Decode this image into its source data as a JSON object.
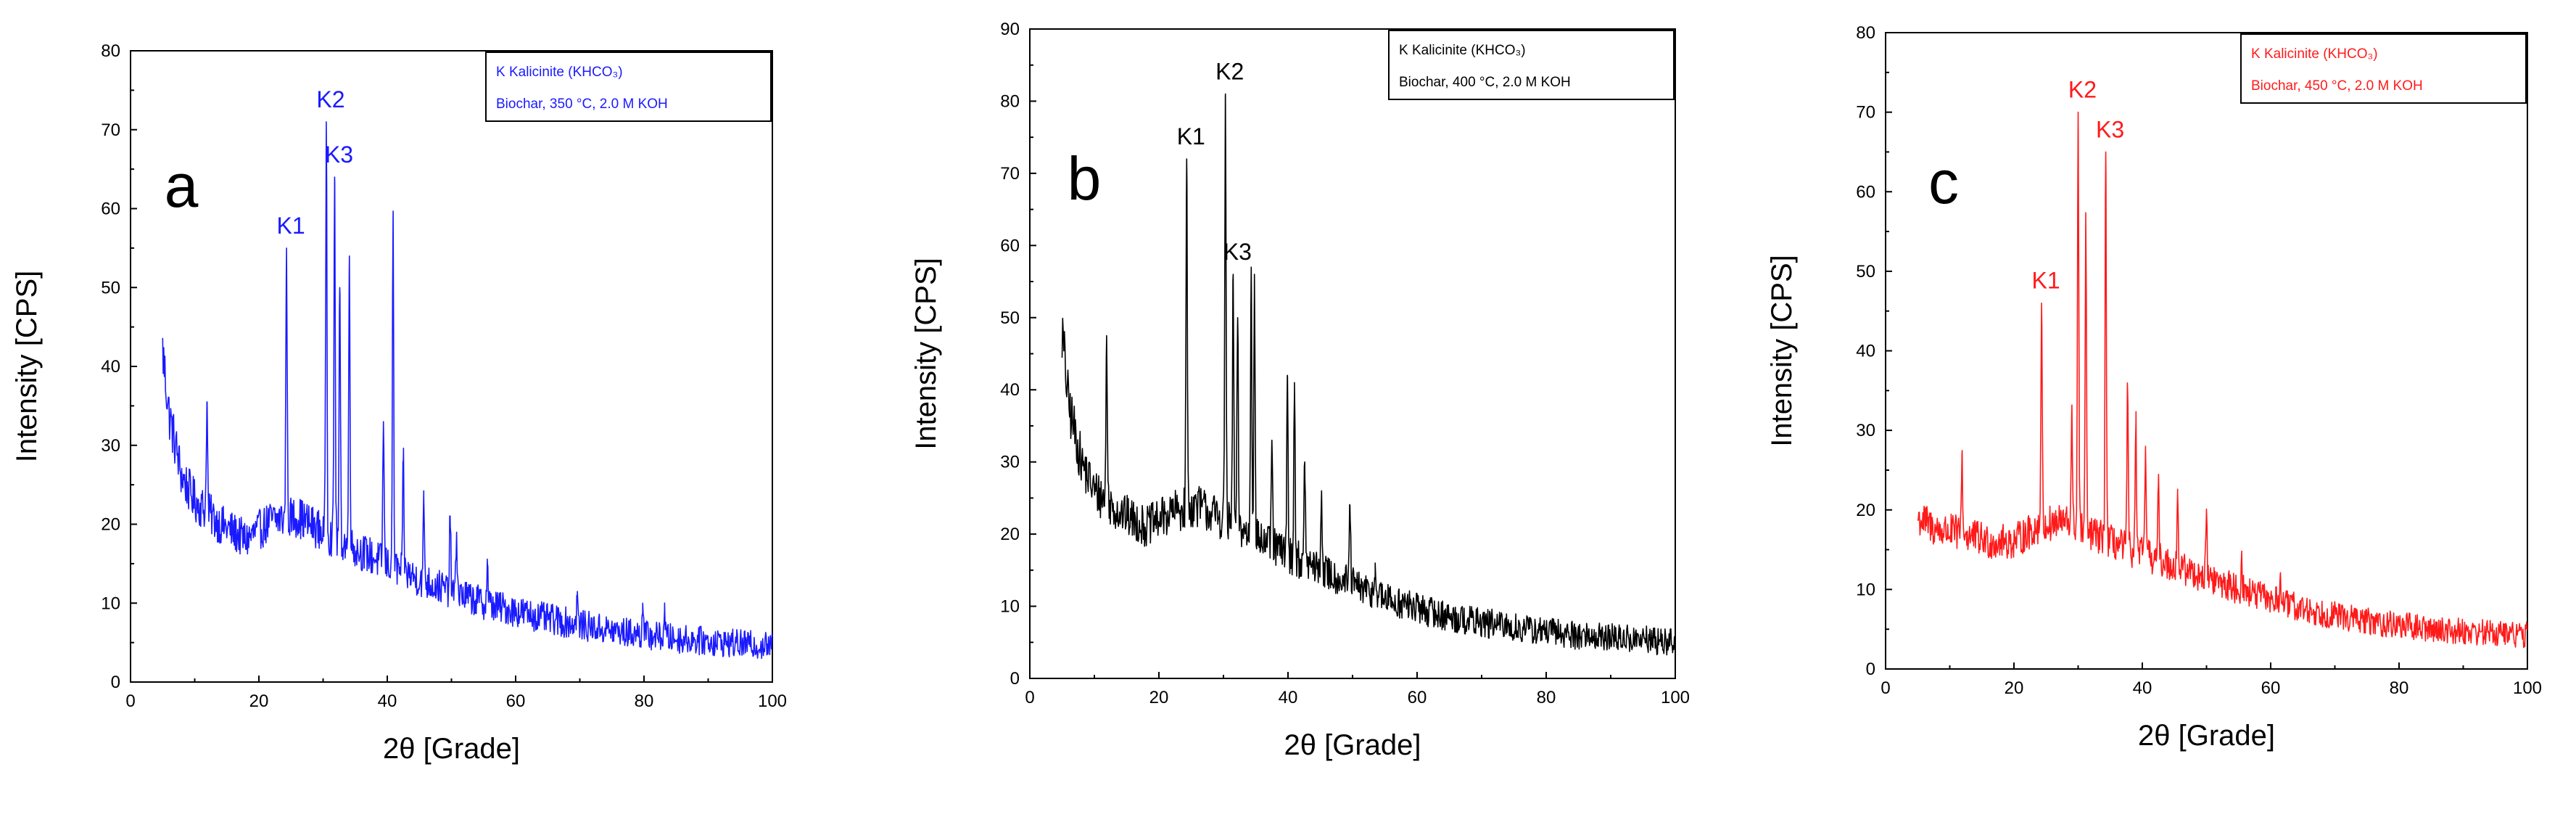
{
  "chart_data": [
    {
      "id": "a",
      "type": "line",
      "panel_letter": "a",
      "xlabel": "2θ [Grade]",
      "ylabel": "Intensity [CPS]",
      "xlim": [
        0,
        100
      ],
      "ylim": [
        0,
        80
      ],
      "xticks": [
        0,
        20,
        40,
        60,
        80,
        100
      ],
      "yticks": [
        0,
        10,
        20,
        30,
        40,
        50,
        60,
        70,
        80
      ],
      "color": "#1a1aff",
      "legend": [
        "K Kalicinite (KHCO₃)",
        "Biochar, 350 °C, 2.0 M KOH"
      ],
      "legend_color": "#1a1aff",
      "legend_placement": "top-right",
      "peak_labels": [
        {
          "text": "K1",
          "x": 24.3,
          "y": 55
        },
        {
          "text": "K2",
          "x": 30.5,
          "y": 71
        },
        {
          "text": "K3",
          "x": 31.8,
          "y": 64
        }
      ],
      "baseline": [
        [
          5,
          42
        ],
        [
          6,
          34
        ],
        [
          8,
          26
        ],
        [
          10,
          23
        ],
        [
          14,
          20
        ],
        [
          18,
          18
        ],
        [
          22,
          20.5
        ],
        [
          26,
          21
        ],
        [
          30,
          19
        ],
        [
          36,
          16.5
        ],
        [
          45,
          13
        ],
        [
          55,
          10
        ],
        [
          65,
          8
        ],
        [
          75,
          6.5
        ],
        [
          85,
          5.5
        ],
        [
          100,
          4.5
        ]
      ],
      "noise": 2.6,
      "peaks": [
        [
          11.9,
          35.5
        ],
        [
          24.3,
          55
        ],
        [
          30.5,
          71
        ],
        [
          31.8,
          64
        ],
        [
          32.6,
          50
        ],
        [
          34.1,
          54
        ],
        [
          39.4,
          33
        ],
        [
          40.9,
          59
        ],
        [
          42.5,
          28
        ],
        [
          45.7,
          23
        ],
        [
          49.8,
          21
        ],
        [
          50.8,
          19
        ],
        [
          55.6,
          15
        ],
        [
          69.6,
          11
        ],
        [
          79.8,
          10
        ],
        [
          83.2,
          9
        ]
      ]
    },
    {
      "id": "b",
      "type": "line",
      "panel_letter": "b",
      "xlabel": "2θ [Grade]",
      "ylabel": "Intensity [CPS]",
      "xlim": [
        0,
        100
      ],
      "ylim": [
        0,
        90
      ],
      "xticks": [
        0,
        20,
        40,
        60,
        80,
        100
      ],
      "yticks": [
        0,
        10,
        20,
        30,
        40,
        50,
        60,
        70,
        80,
        90
      ],
      "color": "#000000",
      "legend": [
        "K Kalicinite (KHCO₃)",
        "Biochar, 400 °C, 2.0 M KOH"
      ],
      "legend_color": "#000000",
      "legend_placement": "top-right",
      "peak_labels": [
        {
          "text": "K1",
          "x": 24.3,
          "y": 72
        },
        {
          "text": "K2",
          "x": 30.3,
          "y": 81
        },
        {
          "text": "K3",
          "x": 31.5,
          "y": 56
        }
      ],
      "baseline": [
        [
          5,
          48
        ],
        [
          6,
          38
        ],
        [
          8,
          30
        ],
        [
          10,
          26
        ],
        [
          14,
          23
        ],
        [
          18,
          21
        ],
        [
          22,
          23
        ],
        [
          26,
          24
        ],
        [
          30,
          22
        ],
        [
          36,
          19
        ],
        [
          45,
          15
        ],
        [
          55,
          11
        ],
        [
          65,
          8.5
        ],
        [
          75,
          7
        ],
        [
          85,
          6
        ],
        [
          100,
          5
        ]
      ],
      "noise": 2.8,
      "peaks": [
        [
          11.9,
          47.5
        ],
        [
          24.3,
          72
        ],
        [
          30.3,
          81
        ],
        [
          31.5,
          56
        ],
        [
          32.2,
          50
        ],
        [
          34.3,
          57
        ],
        [
          34.8,
          56
        ],
        [
          37.5,
          33
        ],
        [
          39.9,
          42
        ],
        [
          41.0,
          41
        ],
        [
          42.6,
          30
        ],
        [
          45.2,
          26
        ],
        [
          49.6,
          24
        ],
        [
          53.5,
          16
        ]
      ]
    },
    {
      "id": "c",
      "type": "line",
      "panel_letter": "c",
      "xlabel": "2θ [Grade]",
      "ylabel": "Intensity [CPS]",
      "xlim": [
        0,
        100
      ],
      "ylim": [
        0,
        80
      ],
      "xticks": [
        0,
        20,
        40,
        60,
        80,
        100
      ],
      "yticks": [
        0,
        10,
        20,
        30,
        40,
        50,
        60,
        70,
        80
      ],
      "color": "#ff1a1a",
      "legend": [
        "K Kalicinite (KHCO₃)",
        "Biochar, 450 °C, 2.0 M KOH"
      ],
      "legend_color": "#ff1a1a",
      "legend_placement": "top-right",
      "peak_labels": [
        {
          "text": "K1",
          "x": 24.3,
          "y": 46
        },
        {
          "text": "K2",
          "x": 30.0,
          "y": 70
        },
        {
          "text": "K3",
          "x": 34.3,
          "y": 65
        }
      ],
      "baseline": [
        [
          5,
          19
        ],
        [
          8,
          17.5
        ],
        [
          12,
          17
        ],
        [
          16,
          16
        ],
        [
          20,
          16
        ],
        [
          24,
          18
        ],
        [
          28,
          18.5
        ],
        [
          32,
          17
        ],
        [
          38,
          15
        ],
        [
          45,
          13
        ],
        [
          55,
          10
        ],
        [
          65,
          7.5
        ],
        [
          75,
          6
        ],
        [
          85,
          5
        ],
        [
          100,
          4.3
        ]
      ],
      "noise": 2.4,
      "peaks": [
        [
          11.9,
          27
        ],
        [
          24.3,
          46
        ],
        [
          29.0,
          32
        ],
        [
          30.0,
          70
        ],
        [
          31.2,
          56
        ],
        [
          34.3,
          65
        ],
        [
          37.7,
          35.5
        ],
        [
          39.0,
          31
        ],
        [
          40.5,
          28
        ],
        [
          42.5,
          23
        ],
        [
          45.5,
          22
        ],
        [
          50.0,
          20
        ],
        [
          55.5,
          14
        ],
        [
          61.5,
          12
        ]
      ]
    }
  ]
}
